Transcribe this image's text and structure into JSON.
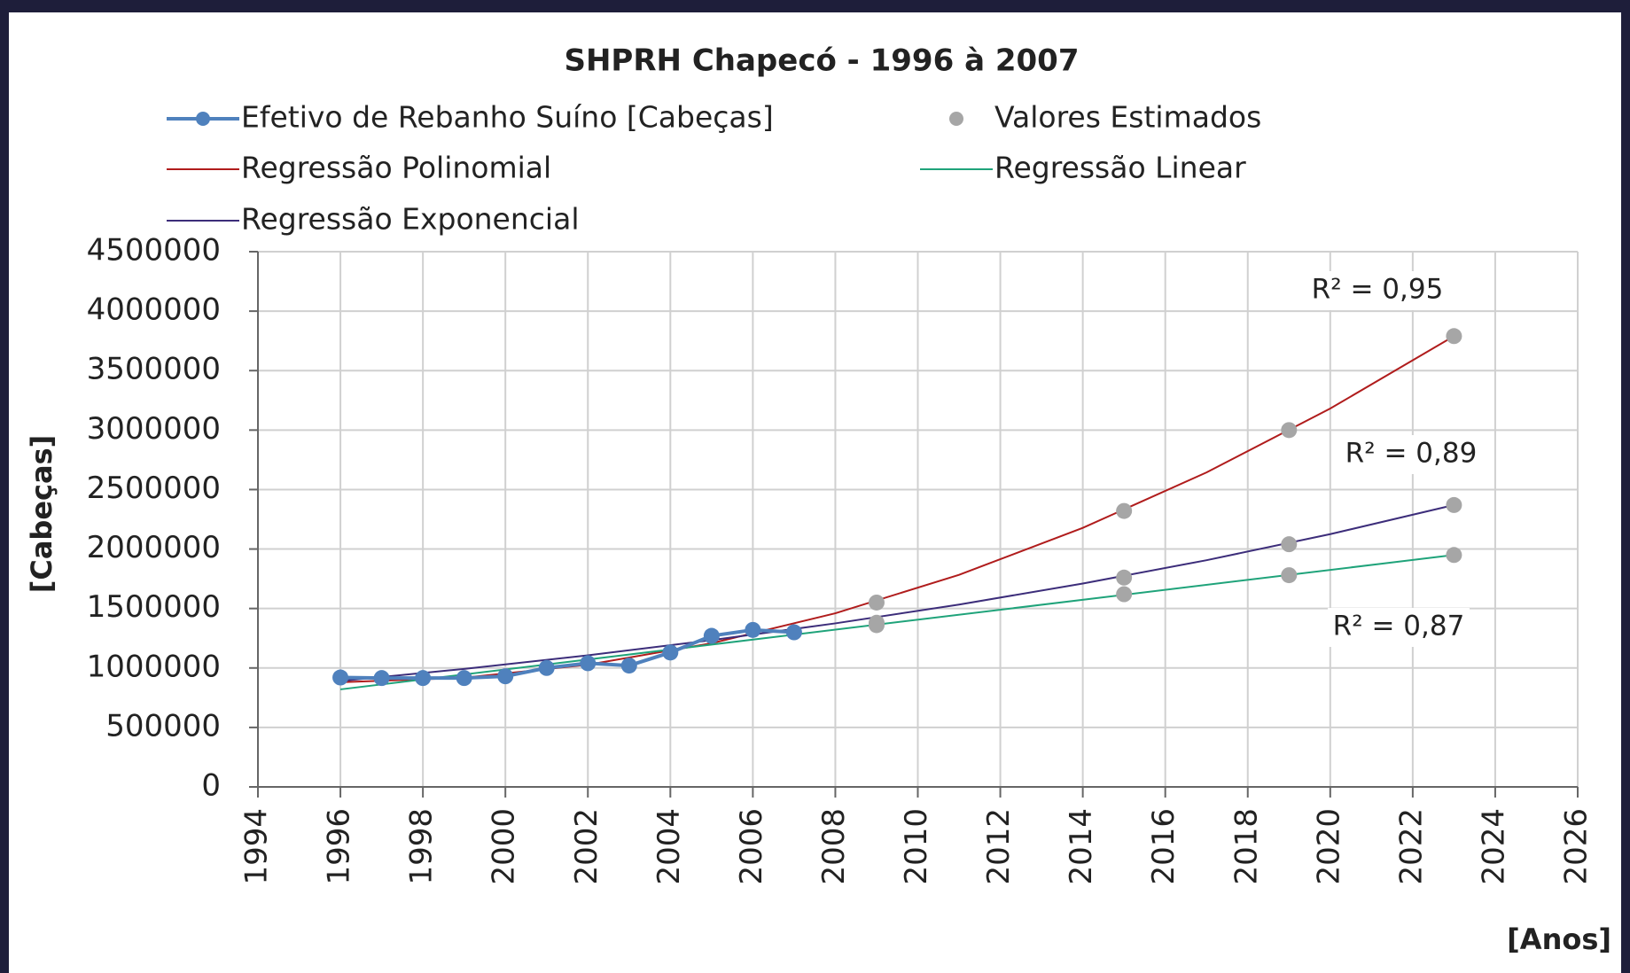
{
  "chart_data": {
    "type": "line",
    "title": "SHPRH Chapecó - 1996 à 2007",
    "x_label": "[Anos]",
    "y_label": "[Cabeças]",
    "xlim": [
      1994,
      2026
    ],
    "xticks": [
      1994,
      1996,
      1998,
      2000,
      2002,
      2004,
      2006,
      2008,
      2010,
      2012,
      2014,
      2016,
      2018,
      2020,
      2022,
      2024,
      2026
    ],
    "ylim": [
      0,
      4500000
    ],
    "yticks": [
      0,
      500000,
      1000000,
      1500000,
      2000000,
      2500000,
      3000000,
      3500000,
      4000000,
      4500000
    ],
    "grid": true,
    "legend": "top",
    "series": [
      {
        "name": "Efetivo de Rebanho Suíno [Cabeças]",
        "color": "#4f81bd",
        "style": "line-markers",
        "x": [
          1996,
          1997,
          1998,
          1999,
          2000,
          2001,
          2002,
          2003,
          2004,
          2005,
          2006,
          2007
        ],
        "values": [
          920000,
          915000,
          915000,
          915000,
          930000,
          1000000,
          1040000,
          1020000,
          1130000,
          1270000,
          1320000,
          1300000
        ]
      },
      {
        "name": "Valores Estimados",
        "color": "#a6a6a6",
        "style": "markers",
        "x": [
          2009,
          2009,
          2009,
          2015,
          2015,
          2015,
          2019,
          2019,
          2019,
          2023,
          2023,
          2023
        ],
        "values": [
          1550000,
          1380000,
          1360000,
          2320000,
          1760000,
          1620000,
          3000000,
          2040000,
          1780000,
          3790000,
          2370000,
          1950000
        ]
      },
      {
        "name": "Regressão Polinomial",
        "color": "#b01c1c",
        "style": "line",
        "x": [
          1996,
          1999,
          2002,
          2005,
          2008,
          2011,
          2014,
          2017,
          2020,
          2023
        ],
        "values": [
          880000,
          918000,
          1027000,
          1208000,
          1460000,
          1783000,
          2178000,
          2644000,
          3181000,
          3790000
        ]
      },
      {
        "name": "Regressão Linear",
        "color": "#1fa37a",
        "style": "line",
        "x": [
          1996,
          2023
        ],
        "values": [
          820000,
          1950000
        ]
      },
      {
        "name": "Regressão Exponencial",
        "color": "#3c2d7a",
        "style": "line",
        "x": [
          1996,
          1999,
          2002,
          2005,
          2008,
          2011,
          2014,
          2017,
          2020,
          2023
        ],
        "values": [
          890000,
          992000,
          1106000,
          1234000,
          1375000,
          1533000,
          1710000,
          1906000,
          2125000,
          2370000
        ]
      }
    ],
    "annotations": [
      "R² = 0,95",
      "R² = 0,89",
      "R² = 0,87"
    ]
  }
}
